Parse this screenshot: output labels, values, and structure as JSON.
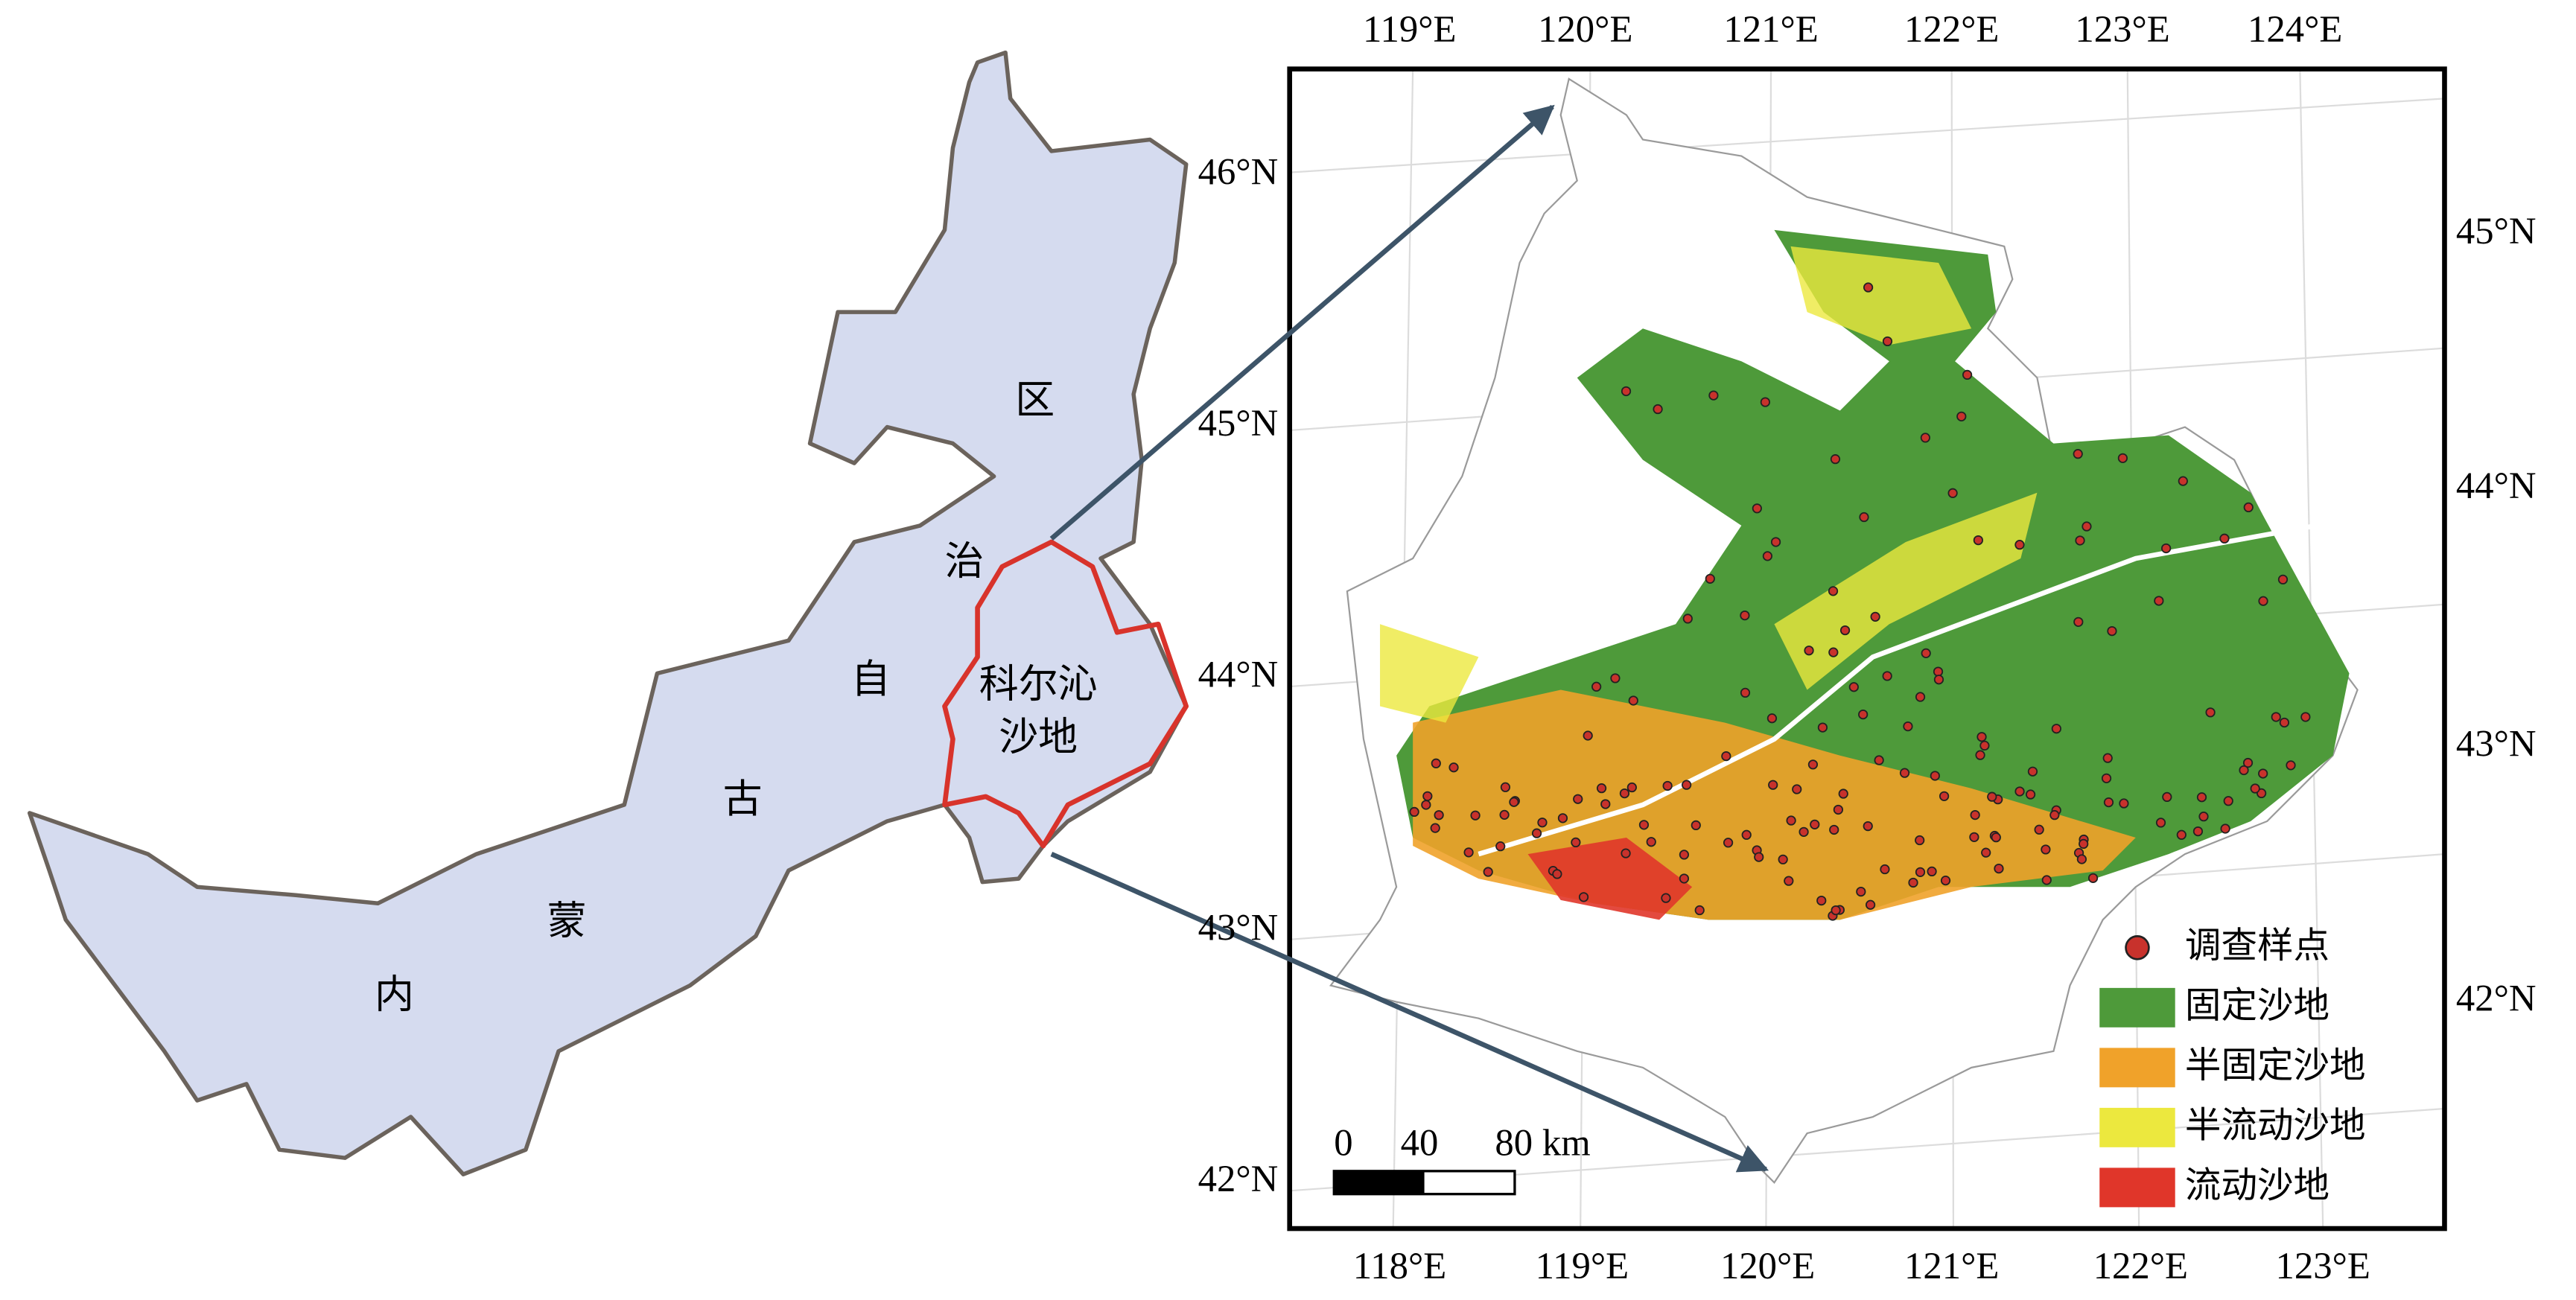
{
  "left_map": {
    "region_labels": [
      "区",
      "治",
      "自",
      "古",
      "蒙",
      "内"
    ],
    "highlight_label": [
      "科尔沁",
      "沙地"
    ]
  },
  "right_map": {
    "top_longitudes": [
      "119°E",
      "120°E",
      "121°E",
      "122°E",
      "123°E",
      "124°E"
    ],
    "bottom_longitudes": [
      "118°E",
      "119°E",
      "120°E",
      "121°E",
      "122°E",
      "123°E"
    ],
    "left_latitudes": [
      "46°N",
      "45°N",
      "44°N",
      "43°N",
      "42°N"
    ],
    "right_latitudes": [
      "45°N",
      "44°N",
      "43°N",
      "42°N"
    ],
    "scale_bar": [
      "0",
      "40",
      "80 km"
    ],
    "legend": [
      {
        "label": "调查样点",
        "color": "#c8322c"
      },
      {
        "label": "固定沙地",
        "color": "#4e9a3a"
      },
      {
        "label": "半固定沙地",
        "color": "#f0a22a"
      },
      {
        "label": "半流动沙地",
        "color": "#ece83e"
      },
      {
        "label": "流动沙地",
        "color": "#e0362a"
      }
    ]
  }
}
